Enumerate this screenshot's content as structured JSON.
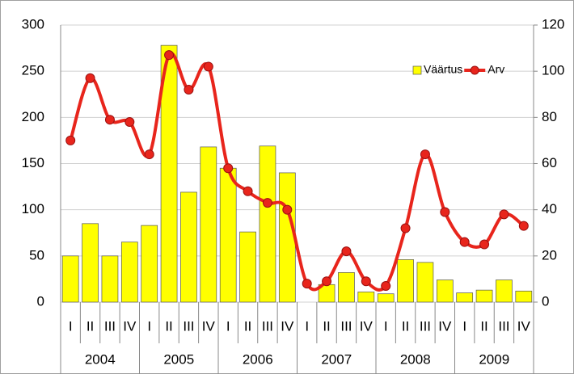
{
  "chart_data": {
    "type": "bar",
    "categories": [
      "I",
      "II",
      "III",
      "IV",
      "I",
      "II",
      "III",
      "IV",
      "I",
      "II",
      "III",
      "IV",
      "I",
      "II",
      "III",
      "IV",
      "I",
      "II",
      "III",
      "IV",
      "I",
      "II",
      "III",
      "IV"
    ],
    "category_groups": [
      "2004",
      "2005",
      "2006",
      "2007",
      "2008",
      "2009"
    ],
    "series": [
      {
        "name": "Väärtus",
        "color": "#ffff00",
        "values": [
          50,
          85,
          50,
          65,
          83,
          278,
          119,
          168,
          145,
          76,
          169,
          140,
          0,
          19,
          32,
          11,
          9,
          46,
          43,
          24,
          10,
          13,
          24,
          12
        ]
      },
      {
        "name": "Arv",
        "type": "line",
        "axis": "y2",
        "color": "#e8251c",
        "values": [
          70,
          97,
          79,
          78,
          64,
          107,
          92,
          102,
          58,
          48,
          43,
          40,
          8,
          9,
          22,
          9,
          7,
          32,
          64,
          39,
          26,
          25,
          38,
          33
        ]
      }
    ],
    "ylim": [
      0,
      300
    ],
    "yticks": [
      0,
      50,
      100,
      150,
      200,
      250,
      300
    ],
    "y2lim": [
      0,
      120
    ],
    "y2ticks": [
      0,
      20,
      40,
      60,
      80,
      100,
      120
    ],
    "grid": true,
    "legend": "top-right"
  }
}
